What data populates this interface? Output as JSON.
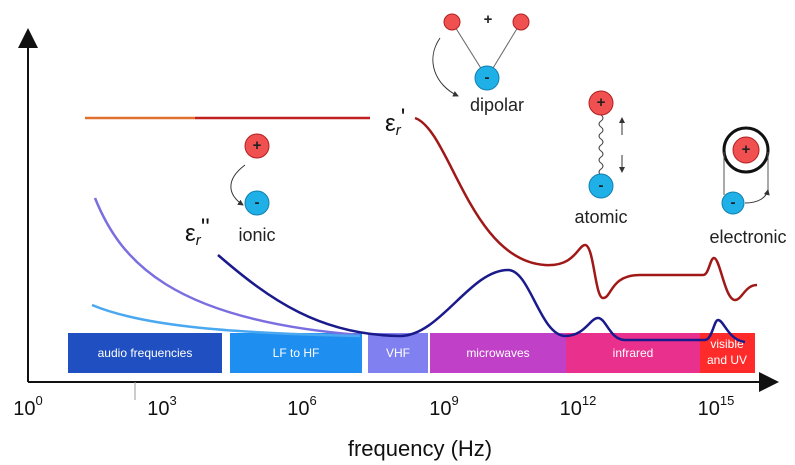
{
  "axis": {
    "label": "frequency (Hz)",
    "ticks": [
      {
        "base": "10",
        "exp": "0"
      },
      {
        "base": "10",
        "exp": "3"
      },
      {
        "base": "10",
        "exp": "6"
      },
      {
        "base": "10",
        "exp": "9"
      },
      {
        "base": "10",
        "exp": "12"
      },
      {
        "base": "10",
        "exp": "15"
      }
    ]
  },
  "bands": [
    "audio frequencies",
    "LF to HF",
    "VHF",
    "microwaves",
    "infrared",
    [
      "visible",
      "and UV"
    ]
  ],
  "curves": {
    "real": {
      "symbol": "ε",
      "subscript": "r",
      "prime": "'"
    },
    "imaginary": {
      "symbol": "ε",
      "subscript": "r",
      "prime": "''"
    }
  },
  "mechanisms": {
    "ionic": "ionic",
    "dipolar": "dipolar",
    "atomic": "atomic",
    "electronic": "electronic"
  },
  "charges": {
    "plus": "+",
    "minus": "-"
  }
}
